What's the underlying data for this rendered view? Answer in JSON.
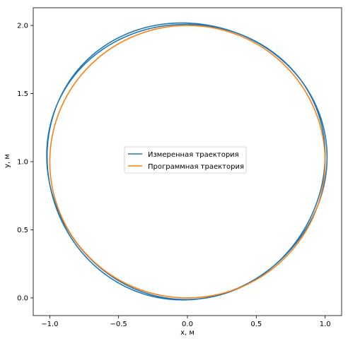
{
  "chart_data": {
    "type": "line",
    "title": "",
    "xlabel": "x, м",
    "ylabel": "y, м",
    "xlim": [
      -1.12,
      1.12
    ],
    "ylim": [
      -0.13,
      2.13
    ],
    "x_ticks": [
      -1.0,
      -0.5,
      0.0,
      0.5,
      1.0
    ],
    "x_tick_labels": [
      "−1.0",
      "−0.5",
      "0.0",
      "0.5",
      "1.0"
    ],
    "y_ticks": [
      0.0,
      0.5,
      1.0,
      1.5,
      2.0
    ],
    "y_tick_labels": [
      "0.0",
      "0.5",
      "1.0",
      "1.5",
      "2.0"
    ],
    "grid": false,
    "legend_position": "center",
    "series": [
      {
        "name": "Измеренная траектория",
        "color": "#1f77b4",
        "shape": "circle-with-drift",
        "center": [
          0.0,
          1.0
        ],
        "radius": 1.0,
        "loops": 2,
        "points": [
          [
            0.0,
            -0.02
          ],
          [
            0.26,
            0.05
          ],
          [
            0.5,
            0.14
          ],
          [
            0.71,
            0.29
          ],
          [
            0.87,
            0.5
          ],
          [
            0.97,
            0.74
          ],
          [
            1.0,
            1.0
          ],
          [
            0.97,
            1.26
          ],
          [
            0.87,
            1.5
          ],
          [
            0.71,
            1.71
          ],
          [
            0.5,
            1.87
          ],
          [
            0.26,
            1.98
          ],
          [
            0.0,
            2.02
          ],
          [
            -0.26,
            1.98
          ],
          [
            -0.5,
            1.87
          ],
          [
            -0.71,
            1.71
          ],
          [
            -0.87,
            1.5
          ],
          [
            -0.98,
            1.26
          ],
          [
            -1.02,
            1.0
          ],
          [
            -0.98,
            0.74
          ],
          [
            -0.87,
            0.5
          ],
          [
            -0.71,
            0.29
          ],
          [
            -0.5,
            0.12
          ],
          [
            -0.26,
            0.02
          ],
          [
            0.0,
            -0.02
          ]
        ]
      },
      {
        "name": "Программная траектория",
        "color": "#ff7f0e",
        "shape": "circle",
        "center": [
          0.0,
          1.0
        ],
        "radius": 1.0
      }
    ]
  }
}
